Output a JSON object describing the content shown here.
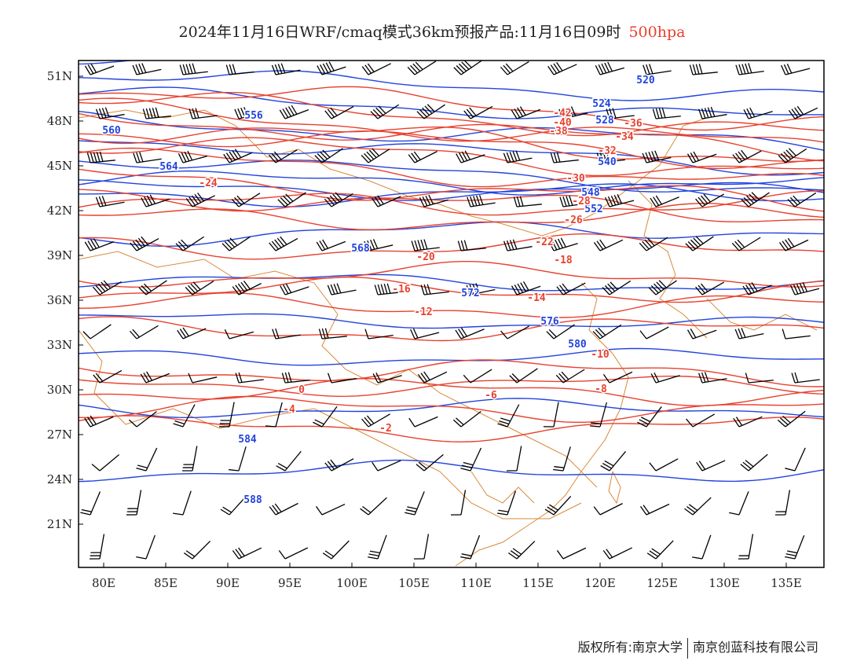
{
  "title": "2024年11月16日WRF/cmaq模式36km预报产品:11月16日09时",
  "level": "500hpa",
  "footer": {
    "left": "版权所有:南京大学",
    "right": "南京创蓝科技有限公司"
  },
  "colors": {
    "height": "#2244dd",
    "temperature": "#e8412f",
    "coast": "#d88a3a",
    "barb": "#000000",
    "frame": "#000000"
  },
  "axes": {
    "lon_labels": [
      "80E",
      "85E",
      "90E",
      "95E",
      "100E",
      "105E",
      "110E",
      "115E",
      "120E",
      "125E",
      "130E",
      "135E"
    ],
    "lat_labels": [
      "51N",
      "48N",
      "45N",
      "42N",
      "39N",
      "36N",
      "33N",
      "30N",
      "27N",
      "24N",
      "21N"
    ]
  },
  "height_contours": [
    {
      "label": "520"
    },
    {
      "label": "524"
    },
    {
      "label": "528"
    },
    {
      "label": "540"
    },
    {
      "label": "548"
    },
    {
      "label": "552"
    },
    {
      "label": "556"
    },
    {
      "label": "560"
    },
    {
      "label": "564"
    },
    {
      "label": "568"
    },
    {
      "label": "572"
    },
    {
      "label": "576"
    },
    {
      "label": "580"
    },
    {
      "label": "584"
    },
    {
      "label": "588"
    }
  ],
  "temperature_contours": [
    {
      "label": "-42"
    },
    {
      "label": "-40"
    },
    {
      "label": "-38"
    },
    {
      "label": "-36"
    },
    {
      "label": "-34"
    },
    {
      "label": "-32"
    },
    {
      "label": "-30"
    },
    {
      "label": "-28"
    },
    {
      "label": "-26"
    },
    {
      "label": "-24"
    },
    {
      "label": "-22"
    },
    {
      "label": "-20"
    },
    {
      "label": "-18"
    },
    {
      "label": "-16"
    },
    {
      "label": "-14"
    },
    {
      "label": "-12"
    },
    {
      "label": "-10"
    },
    {
      "label": "-8"
    },
    {
      "label": "-6"
    },
    {
      "label": "-4"
    },
    {
      "label": "-2"
    },
    {
      "label": "0"
    }
  ]
}
